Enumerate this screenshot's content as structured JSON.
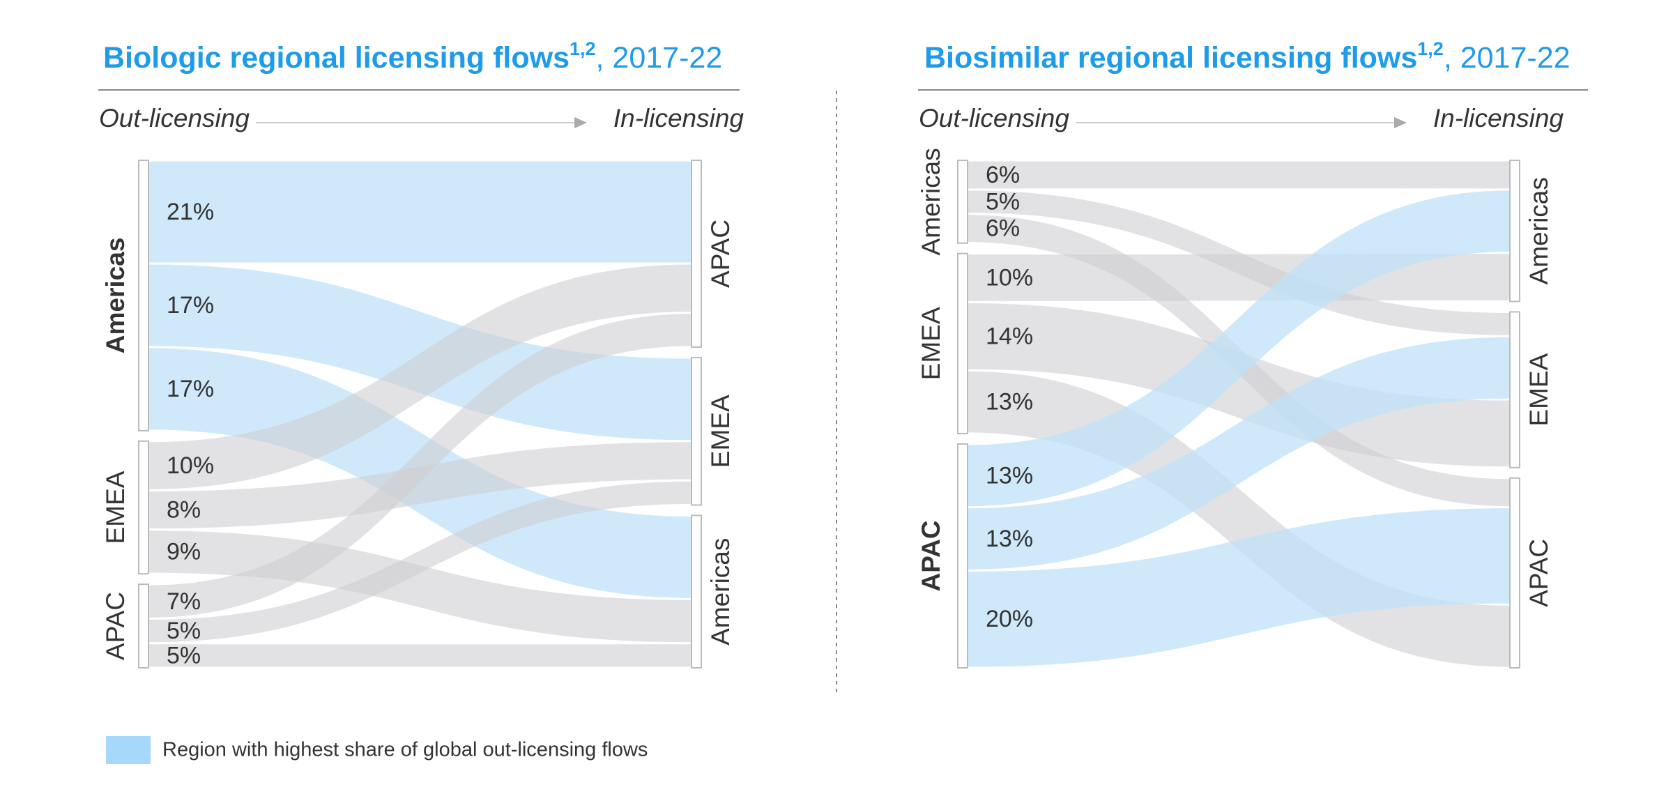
{
  "chart_data": [
    {
      "type": "sankey",
      "title": "Biologic regional licensing flows",
      "title_superscript": "1,2",
      "title_period": ", 2017-22",
      "start_label": "Out-licensing",
      "end_label": "In-licensing",
      "sources": [
        {
          "name": "Americas",
          "highlight": true
        },
        {
          "name": "EMEA",
          "highlight": false
        },
        {
          "name": "APAC",
          "highlight": false
        }
      ],
      "targets": [
        "APAC",
        "EMEA",
        "Americas"
      ],
      "links": [
        {
          "source": "Americas",
          "target": "APAC",
          "value": 21,
          "value_label": "21%"
        },
        {
          "source": "Americas",
          "target": "EMEA",
          "value": 17,
          "value_label": "17%"
        },
        {
          "source": "Americas",
          "target": "Americas",
          "value": 17,
          "value_label": "17%"
        },
        {
          "source": "EMEA",
          "target": "APAC",
          "value": 10,
          "value_label": "10%"
        },
        {
          "source": "EMEA",
          "target": "EMEA",
          "value": 8,
          "value_label": "8%"
        },
        {
          "source": "EMEA",
          "target": "Americas",
          "value": 9,
          "value_label": "9%"
        },
        {
          "source": "APAC",
          "target": "APAC",
          "value": 7,
          "value_label": "7%"
        },
        {
          "source": "APAC",
          "target": "EMEA",
          "value": 5,
          "value_label": "5%"
        },
        {
          "source": "APAC",
          "target": "Americas",
          "value": 5,
          "value_label": "5%"
        }
      ],
      "link_color": "#cfcfd2",
      "highlight_color": "#bfe1fa"
    },
    {
      "type": "sankey",
      "title": "Biosimilar regional licensing flows",
      "title_superscript": "1,2",
      "title_period": ", 2017-22",
      "start_label": "Out-licensing",
      "end_label": "In-licensing",
      "sources": [
        {
          "name": "Americas",
          "highlight": false
        },
        {
          "name": "EMEA",
          "highlight": false
        },
        {
          "name": "APAC",
          "highlight": true
        }
      ],
      "targets": [
        "Americas",
        "EMEA",
        "APAC"
      ],
      "links": [
        {
          "source": "Americas",
          "target": "Americas",
          "value": 6,
          "value_label": "6%"
        },
        {
          "source": "Americas",
          "target": "EMEA",
          "value": 5,
          "value_label": "5%"
        },
        {
          "source": "Americas",
          "target": "APAC",
          "value": 6,
          "value_label": "6%"
        },
        {
          "source": "EMEA",
          "target": "Americas",
          "value": 10,
          "value_label": "10%"
        },
        {
          "source": "EMEA",
          "target": "EMEA",
          "value": 14,
          "value_label": "14%"
        },
        {
          "source": "EMEA",
          "target": "APAC",
          "value": 13,
          "value_label": "13%"
        },
        {
          "source": "APAC",
          "target": "Americas",
          "value": 13,
          "value_label": "13%"
        },
        {
          "source": "APAC",
          "target": "EMEA",
          "value": 13,
          "value_label": "13%"
        },
        {
          "source": "APAC",
          "target": "APAC",
          "value": 20,
          "value_label": "20%"
        }
      ],
      "link_color": "#cfcfd2",
      "highlight_color": "#bfe1fa"
    }
  ],
  "legend": {
    "label": "Region with highest share of global out-licensing flows",
    "color": "#a6d8fb"
  }
}
